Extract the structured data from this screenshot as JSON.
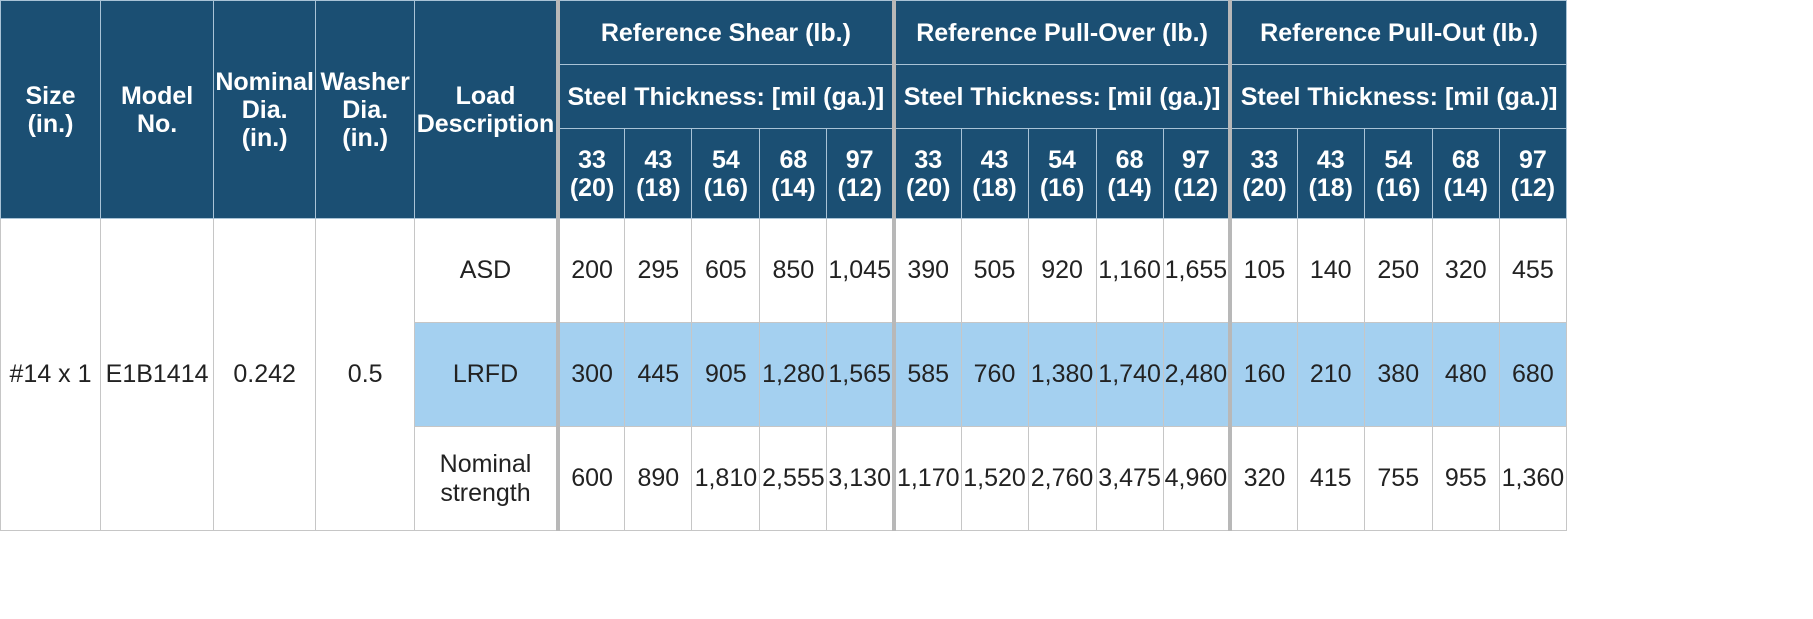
{
  "table": {
    "headers": {
      "size": [
        "Size",
        "(in.)"
      ],
      "model": [
        "Model",
        "No."
      ],
      "nominal_dia": [
        "Nominal",
        "Dia.",
        "(in.)"
      ],
      "washer_dia": [
        "Washer",
        "Dia.",
        "(in.)"
      ],
      "load_desc": [
        "Load",
        "Description"
      ],
      "groups": [
        {
          "title": "Reference Shear (lb.)",
          "sub": "Steel Thickness: [mil (ga.)]"
        },
        {
          "title": "Reference Pull-Over (lb.)",
          "sub": "Steel Thickness: [mil (ga.)]"
        },
        {
          "title": "Reference Pull-Out (lb.)",
          "sub": "Steel Thickness: [mil (ga.)]"
        }
      ],
      "thickness": [
        {
          "mil": "33",
          "ga": "(20)"
        },
        {
          "mil": "43",
          "ga": "(18)"
        },
        {
          "mil": "54",
          "ga": "(16)"
        },
        {
          "mil": "68",
          "ga": "(14)"
        },
        {
          "mil": "97",
          "ga": "(12)"
        }
      ]
    },
    "product": {
      "size": "#14 x 1",
      "model": "E1B1414",
      "nominal_dia": "0.242",
      "washer_dia": "0.5"
    },
    "rows": [
      {
        "desc": [
          "ASD"
        ],
        "values": [
          "200",
          "295",
          "605",
          "850",
          "1,045",
          "390",
          "505",
          "920",
          "1,160",
          "1,655",
          "105",
          "140",
          "250",
          "320",
          "455"
        ]
      },
      {
        "desc": [
          "LRFD"
        ],
        "values": [
          "300",
          "445",
          "905",
          "1,280",
          "1,565",
          "585",
          "760",
          "1,380",
          "1,740",
          "2,480",
          "160",
          "210",
          "380",
          "480",
          "680"
        ]
      },
      {
        "desc": [
          "Nominal",
          "strength"
        ],
        "values": [
          "600",
          "890",
          "1,810",
          "2,555",
          "3,130",
          "1,170",
          "1,520",
          "2,760",
          "3,475",
          "4,960",
          "320",
          "415",
          "755",
          "955",
          "1,360"
        ]
      }
    ],
    "colors": {
      "header_bg": "#1b4f73",
      "highlight_row": "#a4d0f0"
    }
  }
}
